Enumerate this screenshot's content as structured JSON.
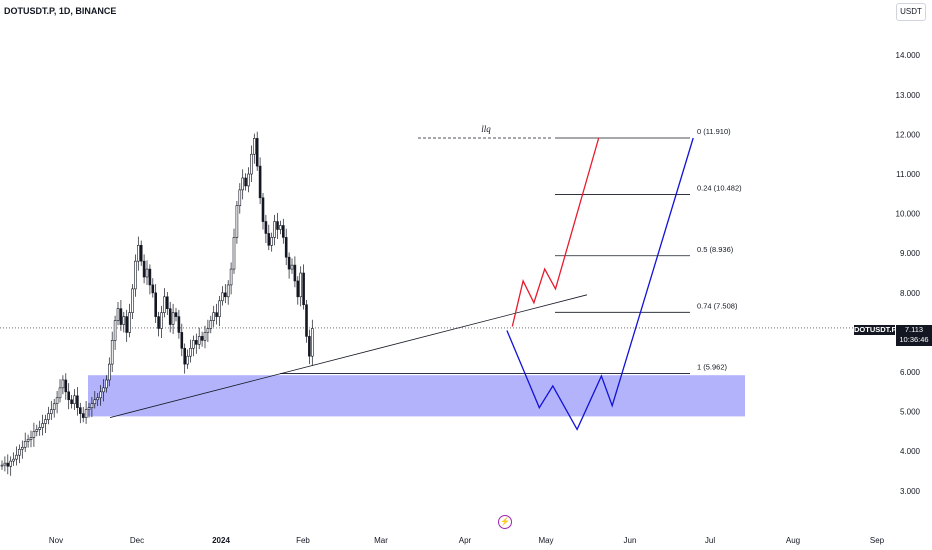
{
  "header": {
    "symbol_title": "DOTUSDT.P, 1D, BINANCE",
    "currency": "USDT"
  },
  "price_tag": {
    "symbol": "DOTUSDT.P",
    "price": "7.113",
    "countdown": "10:36:46"
  },
  "colors": {
    "up_candle": "#131722",
    "support_zone": "#b3b3fb",
    "bullish_path": "#e81a2e",
    "bearish_path": "#1212d8",
    "fib_line": "#131722",
    "trendline": "#131722"
  },
  "chart_data": {
    "type": "candlestick",
    "x_axis_ticks": [
      "Nov",
      "Dec",
      "2024",
      "Feb",
      "Mar",
      "Apr",
      "May",
      "Jun",
      "Jul",
      "Aug",
      "Sep"
    ],
    "y_axis_ticks": [
      "14.000",
      "13.000",
      "12.000",
      "11.000",
      "10.000",
      "9.000",
      "8.000",
      "7.000",
      "6.000",
      "5.000",
      "4.000",
      "3.000"
    ],
    "ylim": [
      2.5,
      14.6
    ],
    "current_price": 7.113,
    "fib_levels": [
      {
        "label": "0 (11.910)",
        "value": 11.91
      },
      {
        "label": "0.24 (10.482)",
        "value": 10.482
      },
      {
        "label": "0.5 (8.936)",
        "value": 8.936
      },
      {
        "label": "0.74 (7.508)",
        "value": 7.508
      },
      {
        "label": "1 (5.962)",
        "value": 5.962
      }
    ],
    "annotations": [
      {
        "text": "llq",
        "value": 11.91
      }
    ],
    "support_zone": {
      "low": 4.88,
      "high": 5.92
    },
    "close_series": [
      3.65,
      3.7,
      3.62,
      3.75,
      3.8,
      3.9,
      4.05,
      4.1,
      4.25,
      4.3,
      4.35,
      4.5,
      4.55,
      4.6,
      4.7,
      4.8,
      4.95,
      5.05,
      5.2,
      5.35,
      5.6,
      5.8,
      5.5,
      5.3,
      5.2,
      5.4,
      5.1,
      4.95,
      4.85,
      5.05,
      5.1,
      5.2,
      5.3,
      5.35,
      5.5,
      5.6,
      5.8,
      6.2,
      6.8,
      7.3,
      7.6,
      7.2,
      7.4,
      7.0,
      7.5,
      8.1,
      8.8,
      9.2,
      8.8,
      8.4,
      8.6,
      8.2,
      8.0,
      7.4,
      7.1,
      7.5,
      7.9,
      7.6,
      7.2,
      7.5,
      7.4,
      7.0,
      6.6,
      6.2,
      6.4,
      6.6,
      6.8,
      6.7,
      6.9,
      6.8,
      7.0,
      7.1,
      7.3,
      7.5,
      7.4,
      7.8,
      8.0,
      7.9,
      8.2,
      8.6,
      9.4,
      10.2,
      10.6,
      10.9,
      10.7,
      11.0,
      11.5,
      11.9,
      11.2,
      10.4,
      9.8,
      9.5,
      9.2,
      9.4,
      9.8,
      9.6,
      9.7,
      9.4,
      8.9,
      8.6,
      8.7,
      8.3,
      7.9,
      8.5,
      7.7,
      6.9,
      6.4,
      7.1
    ],
    "series": [
      {
        "name": "bullish scenario",
        "points": [
          {
            "x": "2024-04-18",
            "y": 7.15
          },
          {
            "x": "2024-04-22",
            "y": 8.3
          },
          {
            "x": "2024-04-26",
            "y": 7.75
          },
          {
            "x": "2024-04-30",
            "y": 8.6
          },
          {
            "x": "2024-05-04",
            "y": 8.1
          },
          {
            "x": "2024-05-20",
            "y": 11.91
          }
        ]
      },
      {
        "name": "bearish scenario",
        "points": [
          {
            "x": "2024-04-16",
            "y": 7.05
          },
          {
            "x": "2024-04-28",
            "y": 5.1
          },
          {
            "x": "2024-05-03",
            "y": 5.65
          },
          {
            "x": "2024-05-12",
            "y": 4.55
          },
          {
            "x": "2024-05-21",
            "y": 5.9
          },
          {
            "x": "2024-05-25",
            "y": 5.15
          },
          {
            "x": "2024-06-24",
            "y": 11.91
          }
        ]
      }
    ]
  }
}
